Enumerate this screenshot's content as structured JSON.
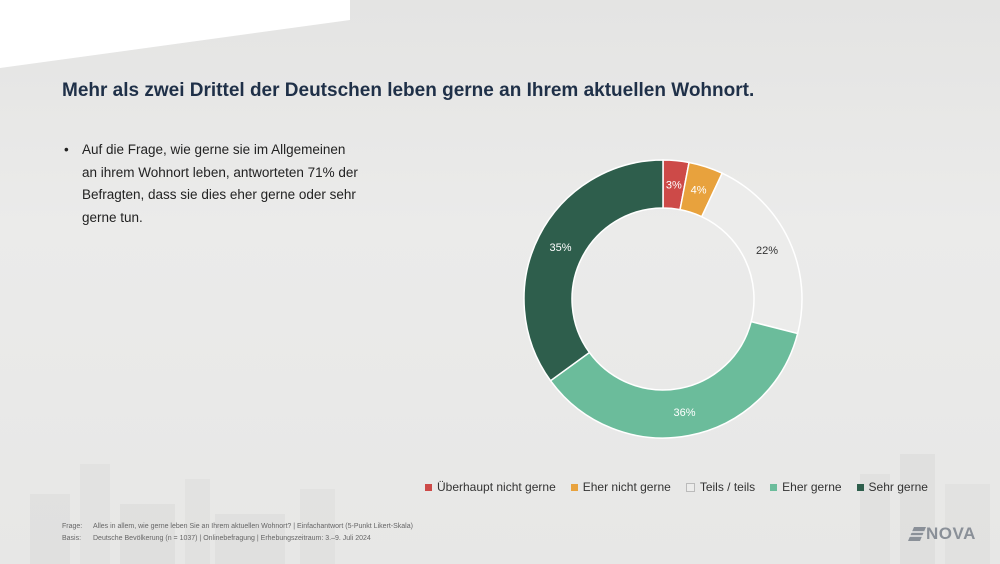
{
  "title": "Mehr als zwei Drittel der Deutschen leben gerne an Ihrem aktuellen Wohnort.",
  "bullets": [
    "Auf die Frage, wie gerne sie im Allgemeinen an ihrem Wohnort leben, antworteten 71% der Befragten, dass sie dies eher gerne oder sehr gerne tun."
  ],
  "chart_data": {
    "type": "pie",
    "subtype": "donut",
    "categories": [
      "Überhaupt nicht gerne",
      "Eher nicht gerne",
      "Teils / teils",
      "Eher gerne",
      "Sehr gerne"
    ],
    "values": [
      3,
      4,
      22,
      36,
      35
    ],
    "value_labels": [
      "3%",
      "4%",
      "22%",
      "36%",
      "35%"
    ],
    "colors": [
      "#cd4a48",
      "#e8a23d",
      "#ececeb",
      "#6bbc9b",
      "#2e5e4c"
    ],
    "label_colors": [
      "#ffffff",
      "#ffffff",
      "#333333",
      "#ffffff",
      "#ffffff"
    ],
    "legend_position": "bottom"
  },
  "footnotes": [
    {
      "key": "Frage:",
      "text": "Alles in allem, wie gerne leben Sie an Ihrem aktuellen Wohnort? | Einfachantwort (5-Punkt Likert-Skala)"
    },
    {
      "key": "Basis:",
      "text": "Deutsche Bevölkerung (n = 1037) | Onlinebefragung | Erhebungszeitraum: 3.–9. Juli 2024"
    }
  ],
  "logo": {
    "text": "NOVA",
    "icon": "nova-logo-icon"
  }
}
